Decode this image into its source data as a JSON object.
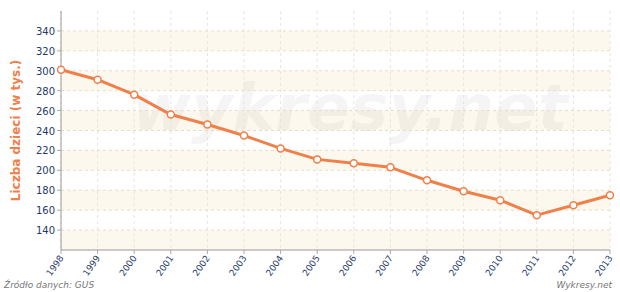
{
  "chart_data": {
    "type": "line",
    "y_label": "Liczba dzieci (w tys.)",
    "source": "Źródło danych: GUS",
    "credit": "Wykresy.net",
    "watermark": "wykresy.net",
    "categories": [
      "1998",
      "1999",
      "2000",
      "2001",
      "2002",
      "2003",
      "2004",
      "2005",
      "2006",
      "2007",
      "2008",
      "2009",
      "2010",
      "2011",
      "2012",
      "2013"
    ],
    "values": [
      301,
      291,
      276,
      256,
      246,
      235,
      222,
      211,
      207,
      203,
      190,
      179,
      170,
      155,
      165,
      175
    ],
    "color": "#f0804a",
    "marker": "circle",
    "ylim": [
      120,
      360
    ],
    "yticks": [
      140,
      160,
      180,
      200,
      220,
      240,
      260,
      280,
      300,
      320,
      340
    ],
    "grid": true
  }
}
